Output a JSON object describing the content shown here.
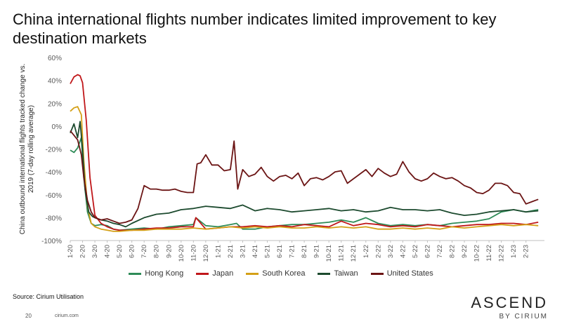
{
  "header": {
    "title": "China international flights number indicates limited improvement to key destination markets"
  },
  "footer": {
    "source": "Source: Cirium Utilisation",
    "page_number": "20",
    "site": "cirium.com",
    "brand_main": "ASCEND",
    "brand_sub": "BY CIRIUM"
  },
  "chart_data": {
    "type": "line",
    "title": "",
    "xlabel": "",
    "ylabel": "China outbound international flights tracked change vs. 2019 (7-day rolling average)",
    "ylim": [
      -100,
      60
    ],
    "yticks": [
      "60%",
      "40%",
      "20%",
      "0%",
      "-20%",
      "-40%",
      "-60%",
      "-80%",
      "-100%"
    ],
    "ytick_values": [
      60,
      40,
      20,
      0,
      -20,
      -40,
      -60,
      -80,
      -100
    ],
    "xlim": [
      0,
      38.5
    ],
    "categories": [
      "1-20",
      "2-20",
      "3-20",
      "4-20",
      "5-20",
      "6-20",
      "7-20",
      "8-20",
      "9-20",
      "10-20",
      "11-20",
      "12-20",
      "1-21",
      "2-21",
      "3-21",
      "4-21",
      "5-21",
      "6-21",
      "7-21",
      "8-21",
      "9-21",
      "10-21",
      "11-21",
      "12-21",
      "1-22",
      "2-22",
      "3-22",
      "4-22",
      "5-22",
      "6-22",
      "7-22",
      "8-22",
      "9-22",
      "10-22",
      "11-22",
      "12-22",
      "1-23",
      "2-23"
    ],
    "grid": false,
    "legend_position": "bottom",
    "colors": {
      "Hong Kong": "#2e8b57",
      "Japan": "#c0171a",
      "South Korea": "#d4a017",
      "Taiwan": "#1c4a2e",
      "United States": "#6b1414"
    },
    "series": [
      {
        "name": "Hong Kong",
        "x": [
          0,
          0.3,
          0.6,
          0.9,
          1.1,
          1.4,
          1.7,
          2,
          2.5,
          3,
          3.5,
          4,
          5,
          6,
          7,
          8,
          9,
          10,
          10.2,
          11,
          12,
          13,
          13.5,
          14,
          15,
          16,
          17,
          18,
          19,
          20,
          21,
          22,
          23,
          24,
          25,
          26,
          27,
          28,
          29,
          30,
          31,
          32,
          33,
          34,
          35,
          36,
          37,
          38
        ],
        "values": [
          -21,
          -23,
          -19,
          -10,
          -45,
          -75,
          -85,
          -87,
          -86,
          -87,
          -90,
          -91,
          -90,
          -89,
          -90,
          -88,
          -87,
          -86,
          -80,
          -87,
          -88,
          -86,
          -85,
          -90,
          -90,
          -88,
          -87,
          -86,
          -86,
          -85,
          -84,
          -82,
          -84,
          -80,
          -85,
          -87,
          -86,
          -87,
          -86,
          -87,
          -85,
          -84,
          -83,
          -81,
          -75,
          -73,
          -75,
          -73
        ]
      },
      {
        "name": "Japan",
        "x": [
          0,
          0.3,
          0.6,
          0.8,
          1,
          1.3,
          1.6,
          2,
          2.5,
          3,
          3.5,
          4,
          5,
          6,
          7,
          8,
          9,
          10,
          10.2,
          11,
          12,
          13,
          14,
          15,
          16,
          17,
          18,
          19,
          20,
          21,
          22,
          23,
          24,
          25,
          26,
          27,
          28,
          29,
          30,
          31,
          32,
          33,
          34,
          35,
          36,
          37,
          38
        ],
        "values": [
          37,
          43,
          45,
          44,
          38,
          5,
          -45,
          -78,
          -85,
          -88,
          -90,
          -91,
          -91,
          -90,
          -89,
          -89,
          -88,
          -88,
          -80,
          -90,
          -89,
          -88,
          -88,
          -87,
          -88,
          -87,
          -88,
          -86,
          -87,
          -88,
          -83,
          -87,
          -85,
          -86,
          -88,
          -87,
          -88,
          -86,
          -87,
          -88,
          -87,
          -86,
          -86,
          -85,
          -85,
          -86,
          -84
        ]
      },
      {
        "name": "South Korea",
        "x": [
          0,
          0.3,
          0.6,
          0.9,
          1.1,
          1.4,
          1.7,
          2,
          2.5,
          3,
          3.5,
          4,
          5,
          6,
          7,
          8,
          9,
          10,
          11,
          12,
          13,
          14,
          15,
          16,
          17,
          18,
          19,
          20,
          21,
          22,
          23,
          24,
          25,
          26,
          27,
          28,
          29,
          30,
          31,
          32,
          33,
          34,
          35,
          36,
          37,
          38
        ],
        "values": [
          13,
          16,
          17,
          10,
          -30,
          -70,
          -85,
          -88,
          -90,
          -91,
          -92,
          -92,
          -91,
          -91,
          -90,
          -90,
          -90,
          -89,
          -90,
          -89,
          -88,
          -89,
          -88,
          -89,
          -88,
          -89,
          -89,
          -88,
          -89,
          -88,
          -89,
          -88,
          -90,
          -90,
          -89,
          -90,
          -89,
          -90,
          -88,
          -89,
          -88,
          -87,
          -86,
          -87,
          -86,
          -87
        ]
      },
      {
        "name": "Taiwan",
        "x": [
          0,
          0.3,
          0.6,
          0.8,
          1,
          1.2,
          1.5,
          1.8,
          2,
          2.5,
          3,
          3.5,
          4,
          4.5,
          5,
          6,
          7,
          8,
          9,
          10,
          11,
          12,
          13,
          14,
          15,
          16,
          17,
          18,
          19,
          20,
          21,
          22,
          23,
          24,
          25,
          26,
          27,
          28,
          29,
          30,
          31,
          32,
          33,
          34,
          35,
          36,
          37,
          38
        ],
        "values": [
          -6,
          2,
          -10,
          4,
          -20,
          -55,
          -75,
          -79,
          -80,
          -82,
          -83,
          -85,
          -86,
          -88,
          -85,
          -80,
          -77,
          -76,
          -73,
          -72,
          -70,
          -71,
          -72,
          -69,
          -74,
          -72,
          -73,
          -75,
          -74,
          -73,
          -72,
          -74,
          -73,
          -75,
          -74,
          -71,
          -73,
          -73,
          -74,
          -73,
          -76,
          -78,
          -77,
          -75,
          -74,
          -73,
          -75,
          -74
        ]
      },
      {
        "name": "United States",
        "x": [
          0,
          0.3,
          0.6,
          0.9,
          1.1,
          1.4,
          1.7,
          2,
          2.5,
          3,
          3.5,
          4,
          4.5,
          5,
          5.5,
          6,
          6.5,
          7,
          7.5,
          8,
          8.5,
          9,
          9.5,
          10,
          10.3,
          10.6,
          11,
          11.5,
          12,
          12.5,
          13,
          13.3,
          13.6,
          14,
          14.5,
          15,
          15.5,
          16,
          16.5,
          17,
          17.5,
          18,
          18.5,
          19,
          19.5,
          20,
          20.5,
          21,
          21.5,
          22,
          22.5,
          23,
          23.5,
          24,
          24.5,
          25,
          25.5,
          26,
          26.5,
          27,
          27.5,
          28,
          28.5,
          29,
          29.5,
          30,
          30.5,
          31,
          31.5,
          32,
          32.5,
          33,
          33.5,
          34,
          34.5,
          35,
          35.5,
          36,
          36.5,
          37,
          37.5,
          38
        ],
        "values": [
          -4,
          -8,
          -12,
          -25,
          -45,
          -65,
          -75,
          -80,
          -82,
          -81,
          -83,
          -85,
          -84,
          -82,
          -72,
          -52,
          -55,
          -55,
          -56,
          -56,
          -55,
          -57,
          -58,
          -58,
          -33,
          -32,
          -25,
          -34,
          -34,
          -39,
          -38,
          -13,
          -55,
          -38,
          -44,
          -42,
          -36,
          -44,
          -48,
          -44,
          -43,
          -46,
          -41,
          -52,
          -46,
          -45,
          -47,
          -44,
          -40,
          -39,
          -50,
          -46,
          -42,
          -38,
          -44,
          -37,
          -41,
          -44,
          -42,
          -31,
          -40,
          -46,
          -48,
          -46,
          -41,
          -44,
          -46,
          -45,
          -48,
          -52,
          -54,
          -58,
          -59,
          -56,
          -50,
          -50,
          -52,
          -58,
          -59,
          -68,
          -66,
          -64
        ]
      }
    ]
  }
}
